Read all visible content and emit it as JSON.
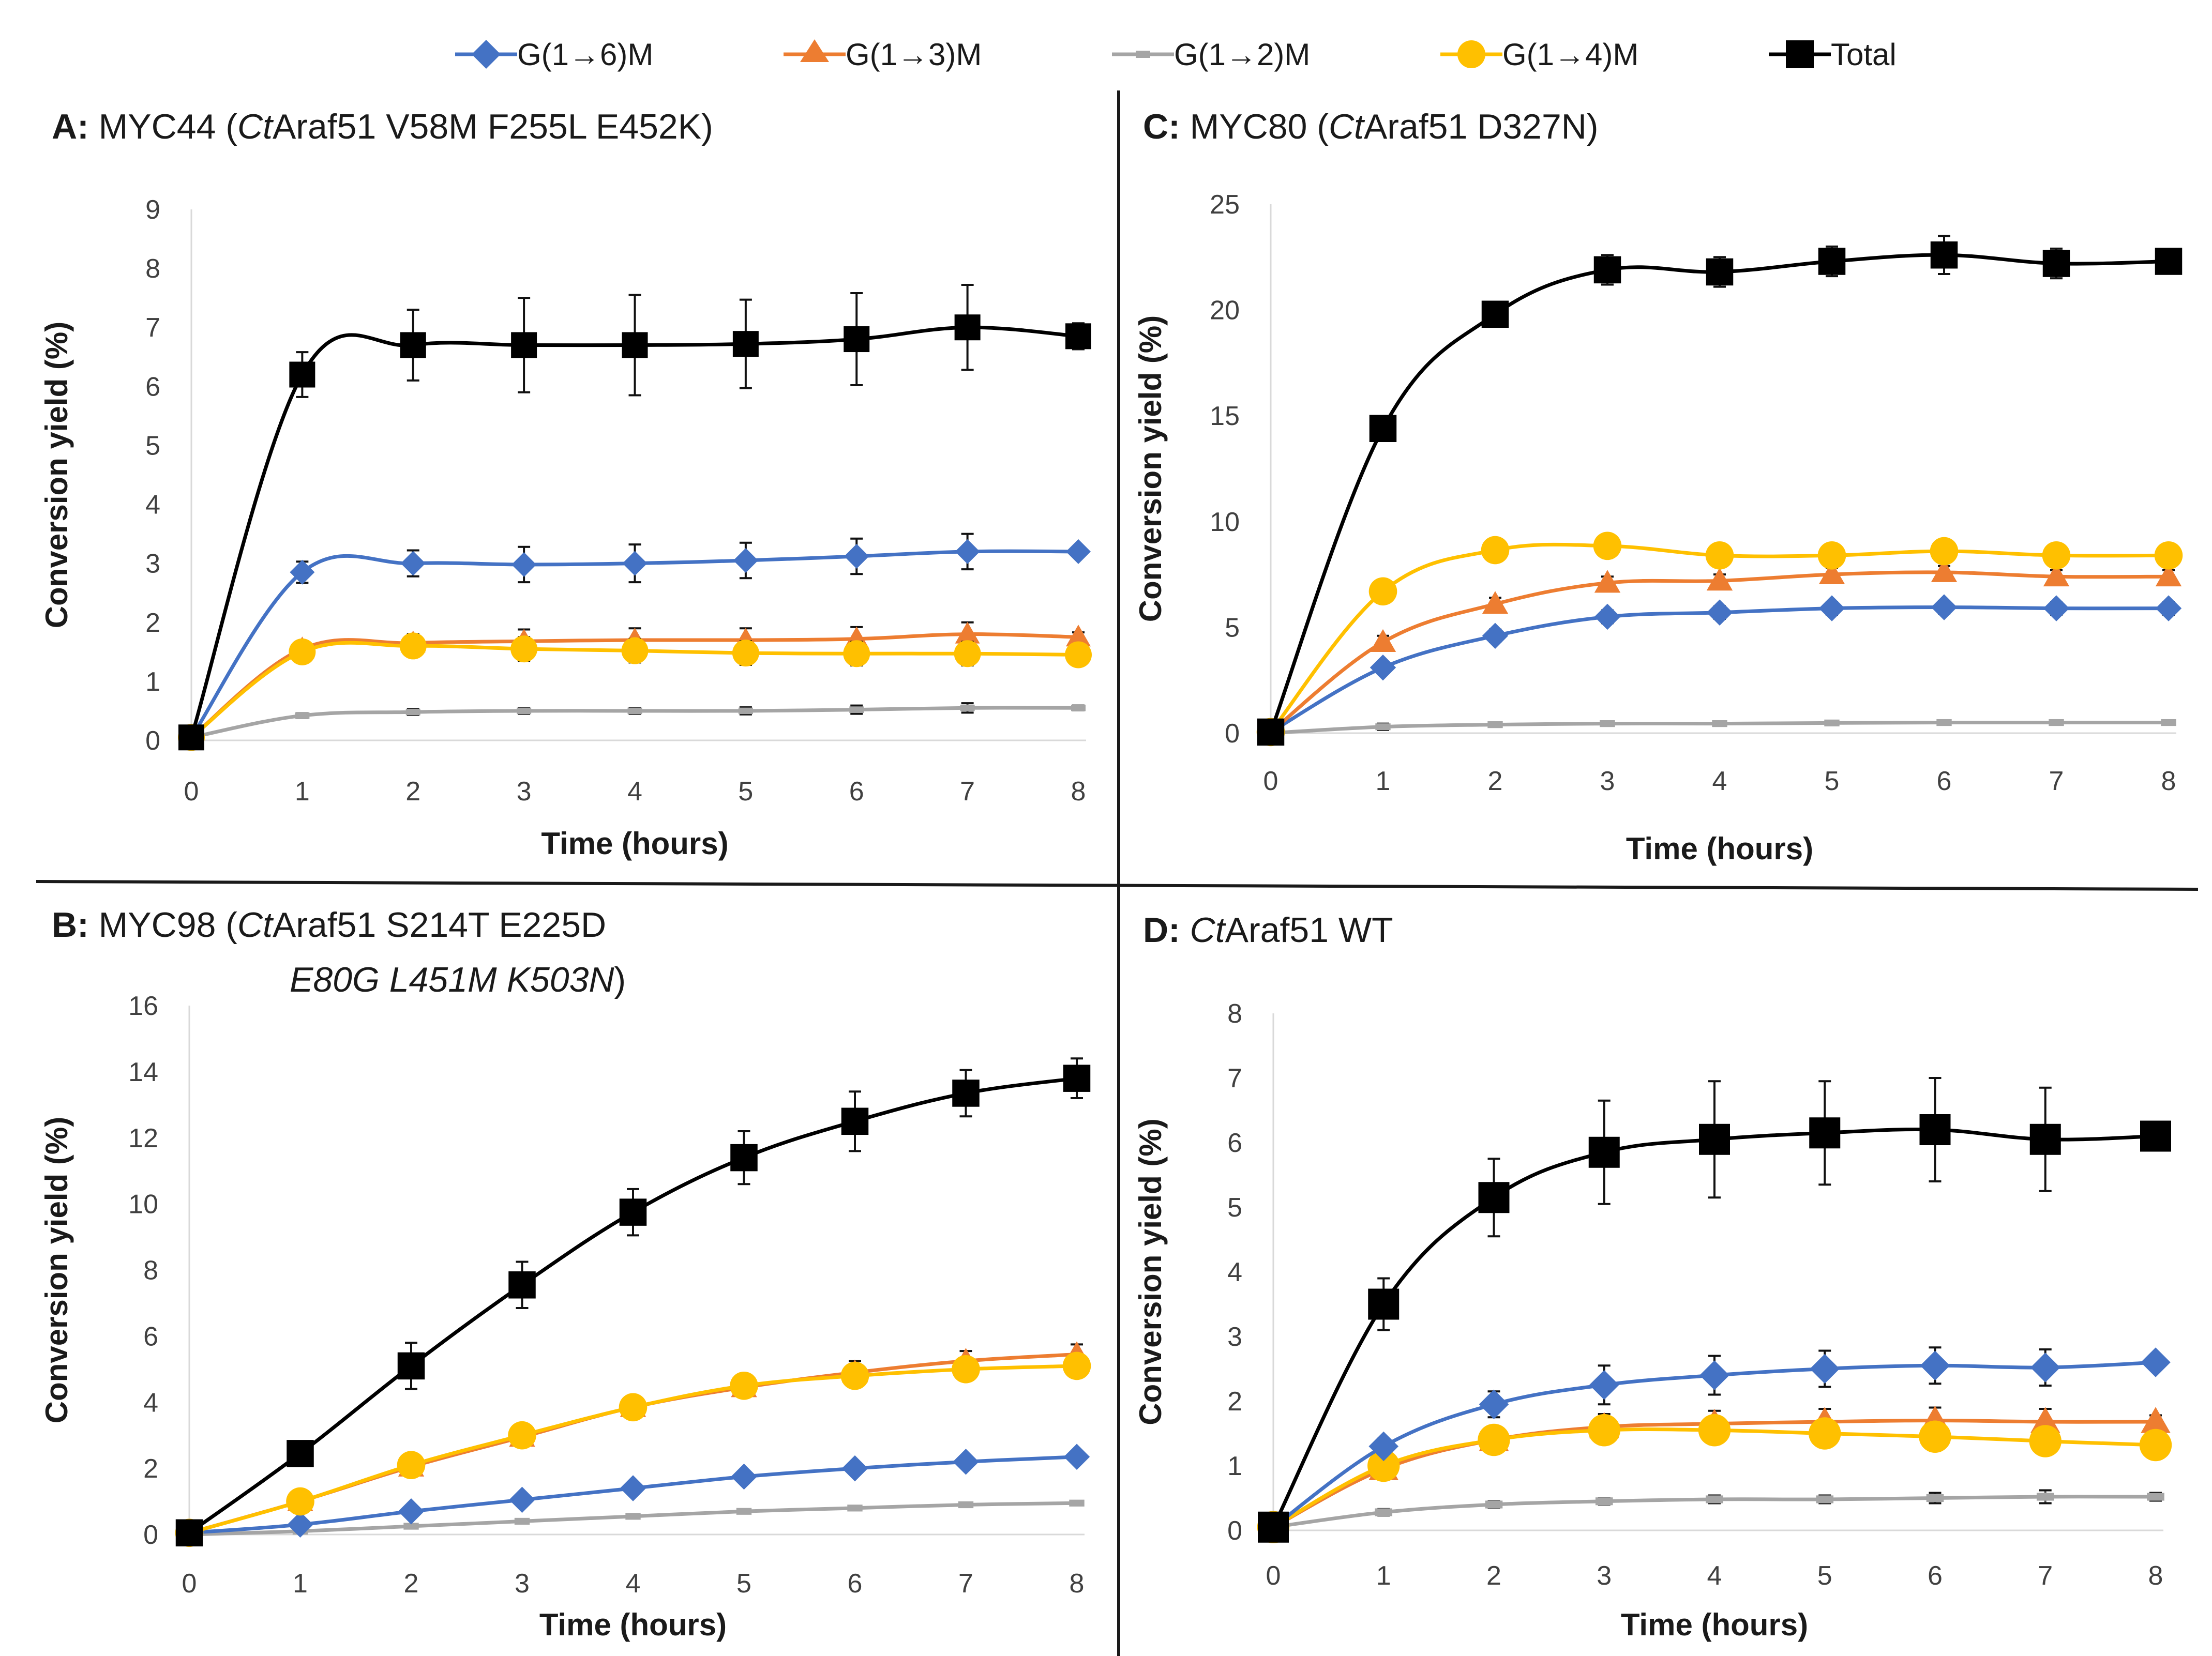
{
  "colors": {
    "blue": "#4472C4",
    "orange": "#ED7D31",
    "gray": "#A5A5A5",
    "yellow": "#FFC000",
    "black": "#000000"
  },
  "legend": [
    {
      "name": "G(1→6)M",
      "marker": "diamond",
      "color": "#4472C4"
    },
    {
      "name": "G(1→3)M",
      "marker": "triangle",
      "color": "#ED7D31"
    },
    {
      "name": "G(1→2)M",
      "marker": "dash",
      "color": "#A5A5A5"
    },
    {
      "name": "G(1→4)M",
      "marker": "circle",
      "color": "#FFC000"
    },
    {
      "name": "Total",
      "marker": "square",
      "color": "#000000"
    }
  ],
  "panels": {
    "A": {
      "letter": "A:",
      "name": " MYC44 (",
      "italic": "Ct",
      "rest": "Araf51 V58M F255L E452K)"
    },
    "B": {
      "letter": "B:",
      "name": " MYC98 (",
      "italic": "Ct",
      "rest": "Araf51 S214T E225D",
      "line2": "E80G L451M K503N",
      "line2_end": ")"
    },
    "C": {
      "letter": "C:",
      "name": " MYC80 (",
      "italic": "Ct",
      "rest": "Araf51 D327N)"
    },
    "D": {
      "letter": "D:",
      "name": " ",
      "italic": "Ct",
      "rest": "Araf51 WT"
    }
  },
  "chart_data": [
    {
      "id": "A",
      "type": "line",
      "title": "A: MYC44 (CtAraf51 V58M F255L E452K)",
      "xlabel": "Time (hours)",
      "ylabel": "Conversion yield (%)",
      "x": [
        0,
        1,
        2,
        3,
        4,
        5,
        6,
        7,
        8
      ],
      "xticks": [
        "0",
        "1",
        "2",
        "3",
        "4",
        "5",
        "6",
        "7",
        "8"
      ],
      "ylim": [
        0,
        9
      ],
      "yticks": [
        "0",
        "1",
        "2",
        "3",
        "4",
        "5",
        "6",
        "7",
        "8",
        "9"
      ],
      "series": [
        {
          "name": "G(1→2)M",
          "values": [
            0.05,
            0.42,
            0.48,
            0.5,
            0.5,
            0.5,
            0.52,
            0.55,
            0.55
          ],
          "errors": [
            0,
            0.04,
            0.05,
            0.05,
            0.05,
            0.06,
            0.07,
            0.08,
            0.04
          ]
        },
        {
          "name": "G(1→3)M",
          "values": [
            0.05,
            1.55,
            1.65,
            1.68,
            1.7,
            1.7,
            1.72,
            1.8,
            1.75
          ],
          "errors": [
            0,
            0.1,
            0.15,
            0.2,
            0.2,
            0.2,
            0.2,
            0.2,
            0.08
          ]
        },
        {
          "name": "G(1→4)M",
          "values": [
            0.05,
            1.5,
            1.6,
            1.55,
            1.52,
            1.48,
            1.47,
            1.47,
            1.45
          ],
          "errors": [
            0,
            0.1,
            0.15,
            0.2,
            0.2,
            0.2,
            0.2,
            0.2,
            0.08
          ]
        },
        {
          "name": "G(1→6)M",
          "values": [
            0.05,
            2.85,
            3.0,
            2.98,
            3.0,
            3.05,
            3.12,
            3.2,
            3.2
          ],
          "errors": [
            0,
            0.18,
            0.22,
            0.3,
            0.32,
            0.3,
            0.3,
            0.3,
            0.06
          ]
        },
        {
          "name": "Total",
          "values": [
            0.05,
            6.2,
            6.7,
            6.7,
            6.7,
            6.72,
            6.8,
            7.0,
            6.85
          ],
          "errors": [
            0,
            0.38,
            0.6,
            0.8,
            0.85,
            0.75,
            0.78,
            0.72,
            0.22
          ]
        }
      ]
    },
    {
      "id": "B",
      "type": "line",
      "title": "B: MYC98 (CtAraf51 S214T E225D E80G L451M K503N)",
      "xlabel": "Time (hours)",
      "ylabel": "Conversion yield (%)",
      "x": [
        0,
        1,
        2,
        3,
        4,
        5,
        6,
        7,
        8
      ],
      "xticks": [
        "0",
        "1",
        "2",
        "3",
        "4",
        "5",
        "6",
        "7",
        "8"
      ],
      "ylim": [
        0,
        16
      ],
      "yticks": [
        "0",
        "2",
        "4",
        "6",
        "8",
        "10",
        "12",
        "14",
        "16"
      ],
      "series": [
        {
          "name": "G(1→2)M",
          "values": [
            0,
            0.1,
            0.25,
            0.4,
            0.55,
            0.7,
            0.8,
            0.9,
            0.95
          ],
          "errors": [
            0,
            0.03,
            0.03,
            0.04,
            0.05,
            0.05,
            0.06,
            0.06,
            0.06
          ]
        },
        {
          "name": "G(1→6)M",
          "values": [
            0.05,
            0.3,
            0.7,
            1.05,
            1.4,
            1.75,
            2.0,
            2.2,
            2.35
          ],
          "errors": [
            0,
            0.05,
            0.08,
            0.1,
            0.1,
            0.12,
            0.12,
            0.12,
            0.12
          ]
        },
        {
          "name": "G(1→3)M",
          "values": [
            0.05,
            1.0,
            2.05,
            2.95,
            3.85,
            4.45,
            4.9,
            5.25,
            5.45
          ],
          "errors": [
            0,
            0.1,
            0.2,
            0.2,
            0.25,
            0.3,
            0.35,
            0.3,
            0.3
          ]
        },
        {
          "name": "G(1→4)M",
          "values": [
            0.05,
            1.0,
            2.1,
            3.0,
            3.85,
            4.5,
            4.8,
            5.0,
            5.1
          ],
          "errors": [
            0,
            0.1,
            0.2,
            0.2,
            0.25,
            0.3,
            0.35,
            0.3,
            0.3
          ]
        },
        {
          "name": "Total",
          "values": [
            0.05,
            2.45,
            5.1,
            7.55,
            9.75,
            11.4,
            12.5,
            13.35,
            13.8
          ],
          "errors": [
            0,
            0.2,
            0.7,
            0.7,
            0.7,
            0.8,
            0.9,
            0.7,
            0.6
          ]
        }
      ]
    },
    {
      "id": "C",
      "type": "line",
      "title": "C: MYC80 (CtAraf51 D327N)",
      "xlabel": "Time (hours)",
      "ylabel": "Conversion yield (%)",
      "x": [
        0,
        1,
        2,
        3,
        4,
        5,
        6,
        7,
        8
      ],
      "xticks": [
        "0",
        "1",
        "2",
        "3",
        "4",
        "5",
        "6",
        "7",
        "8"
      ],
      "ylim": [
        0,
        25
      ],
      "yticks": [
        "0",
        "5",
        "10",
        "15",
        "20",
        "25"
      ],
      "series": [
        {
          "name": "G(1→2)M",
          "values": [
            0,
            0.3,
            0.4,
            0.45,
            0.45,
            0.48,
            0.5,
            0.5,
            0.5
          ],
          "errors": [
            0,
            0.15,
            0.1,
            0.1,
            0.1,
            0.1,
            0.1,
            0.1,
            0.1
          ]
        },
        {
          "name": "G(1→6)M",
          "values": [
            0.05,
            3.1,
            4.6,
            5.5,
            5.7,
            5.9,
            5.95,
            5.9,
            5.9
          ],
          "errors": [
            0,
            0.2,
            0.3,
            0.3,
            0.3,
            0.3,
            0.3,
            0.3,
            0.3
          ]
        },
        {
          "name": "G(1→3)M",
          "values": [
            0.05,
            4.3,
            6.1,
            7.1,
            7.2,
            7.5,
            7.6,
            7.4,
            7.4
          ],
          "errors": [
            0,
            0.3,
            0.3,
            0.3,
            0.3,
            0.3,
            0.3,
            0.3,
            0.3
          ]
        },
        {
          "name": "G(1→4)M",
          "values": [
            0.05,
            6.7,
            8.65,
            8.85,
            8.4,
            8.4,
            8.6,
            8.4,
            8.4
          ],
          "errors": [
            0,
            0.3,
            0.3,
            0.3,
            0.3,
            0.3,
            0.3,
            0.3,
            0.3
          ]
        },
        {
          "name": "Total",
          "values": [
            0.05,
            14.4,
            19.8,
            21.9,
            21.8,
            22.3,
            22.6,
            22.2,
            22.3
          ],
          "errors": [
            0,
            0.5,
            0.5,
            0.7,
            0.7,
            0.7,
            0.9,
            0.7,
            0.5
          ]
        }
      ]
    },
    {
      "id": "D",
      "type": "line",
      "title": "D: CtAraf51 WT",
      "xlabel": "Time (hours)",
      "ylabel": "Conversion yield (%)",
      "x": [
        0,
        1,
        2,
        3,
        4,
        5,
        6,
        7,
        8
      ],
      "xticks": [
        "0",
        "1",
        "2",
        "3",
        "4",
        "5",
        "6",
        "7",
        "8"
      ],
      "ylim": [
        0,
        8
      ],
      "yticks": [
        "0",
        "1",
        "2",
        "3",
        "4",
        "5",
        "6",
        "7",
        "8"
      ],
      "series": [
        {
          "name": "G(1→2)M",
          "values": [
            0.05,
            0.28,
            0.4,
            0.45,
            0.48,
            0.48,
            0.5,
            0.52,
            0.52
          ],
          "errors": [
            0,
            0.05,
            0.05,
            0.05,
            0.06,
            0.06,
            0.08,
            0.1,
            0.06
          ]
        },
        {
          "name": "G(1→3)M",
          "values": [
            0.05,
            0.95,
            1.4,
            1.6,
            1.65,
            1.68,
            1.7,
            1.68,
            1.68
          ],
          "errors": [
            0,
            0.1,
            0.15,
            0.2,
            0.2,
            0.2,
            0.2,
            0.2,
            0.1
          ]
        },
        {
          "name": "G(1→4)M",
          "values": [
            0.05,
            1.0,
            1.4,
            1.55,
            1.55,
            1.5,
            1.45,
            1.38,
            1.32
          ],
          "errors": [
            0,
            0.1,
            0.15,
            0.2,
            0.2,
            0.2,
            0.2,
            0.2,
            0.1
          ]
        },
        {
          "name": "G(1→6)M",
          "values": [
            0.05,
            1.3,
            1.95,
            2.25,
            2.4,
            2.5,
            2.55,
            2.52,
            2.6
          ],
          "errors": [
            0,
            0.12,
            0.2,
            0.3,
            0.3,
            0.28,
            0.28,
            0.28,
            0.08
          ]
        },
        {
          "name": "Total",
          "values": [
            0.05,
            3.5,
            5.15,
            5.85,
            6.05,
            6.15,
            6.2,
            6.05,
            6.1
          ],
          "errors": [
            0,
            0.4,
            0.6,
            0.8,
            0.9,
            0.8,
            0.8,
            0.8,
            0.2
          ]
        }
      ]
    }
  ]
}
